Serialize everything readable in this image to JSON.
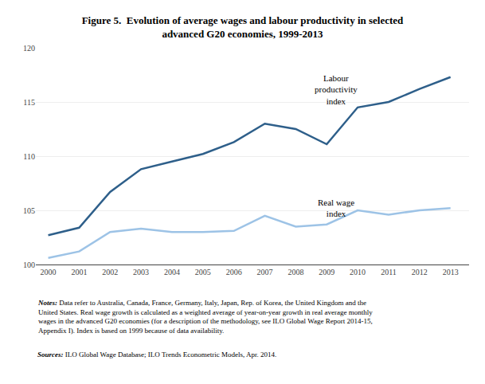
{
  "chart_data": {
    "type": "line",
    "title": "Figure 5.  Evolution of average wages and labour productivity in selected\nadvanced G20 economies, 1999-2013",
    "x": [
      2000,
      2001,
      2002,
      2003,
      2004,
      2005,
      2006,
      2007,
      2008,
      2009,
      2010,
      2011,
      2012,
      2013
    ],
    "series": [
      {
        "color": "#2E5F8A",
        "values": [
          102.7,
          103.4,
          106.7,
          108.8,
          109.5,
          110.2,
          111.3,
          113.0,
          112.5,
          111.1,
          114.5,
          115.0,
          116.2,
          117.3
        ]
      },
      {
        "color": "#9DC3E6",
        "values": [
          100.6,
          101.2,
          103.0,
          103.3,
          103.0,
          103.0,
          103.1,
          104.5,
          103.5,
          103.7,
          105.0,
          104.6,
          105.0,
          105.2
        ]
      }
    ],
    "xlim": [
      1999.6,
      2013.6
    ],
    "xticks": [
      2000,
      2001,
      2002,
      2003,
      2004,
      2005,
      2006,
      2007,
      2008,
      2009,
      2010,
      2011,
      2012,
      2013
    ],
    "ylim": [
      100,
      120
    ],
    "yticks": [
      100,
      105,
      110,
      115,
      120
    ],
    "grid": "y",
    "annotations": [
      {
        "text": "Labour\nproductivity\nindex",
        "x": 2009.3,
        "y": 117.8
      },
      {
        "text": "Real wage\nindex",
        "x": 2009.3,
        "y": 106.3
      }
    ],
    "notes": [
      {
        "label": "Notes:",
        "text": "Data refer to Australia, Canada, France, Germany, Italy, Japan, Rep. of Korea, the United Kingdom and the\nUnited States. Real wage growth is calculated as a weighted average of year-on-year growth in real average monthly\nwages in the advanced G20 economies (for a description of the methodology, see ILO Global Wage Report 2014-15,\nAppendix I). Index is based on 1999 because of data availability."
      },
      {
        "label": "Sources:",
        "text": "ILO Global Wage Database; ILO Trends Econometric Models, Apr. 2014."
      }
    ]
  }
}
